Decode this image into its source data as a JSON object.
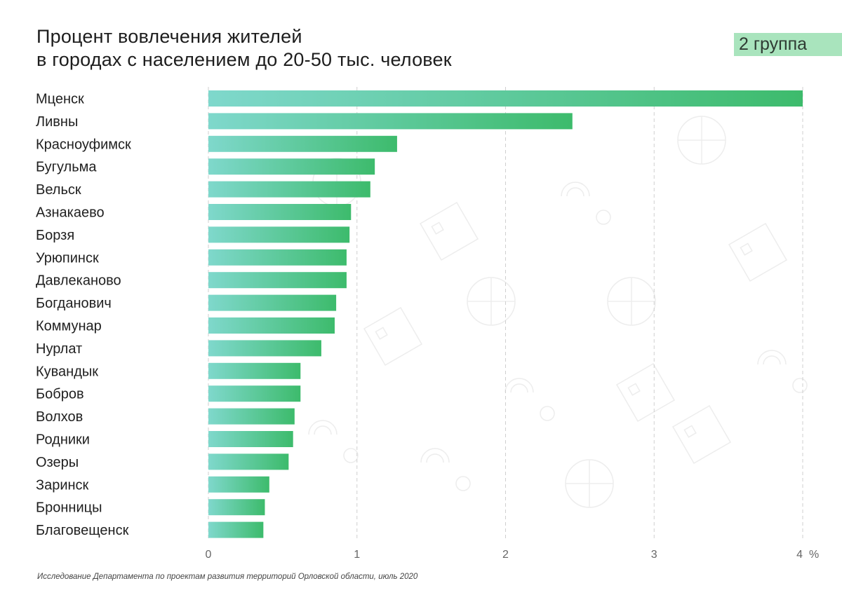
{
  "title_line1": "Процент вовлечения жителей",
  "title_line2": "в городах с населением до 20-50 тыс. человек",
  "badge": "2 группа",
  "source": "Исследование Департамента по проектам развития территорий Орловской области, июль 2020",
  "colors": {
    "bar_start": "#7fd8cc",
    "bar_end": "#3dbb6c",
    "badge_bg": "#a9e4bd",
    "grid": "#cfcfcf"
  },
  "chart_data": {
    "type": "bar",
    "orientation": "horizontal",
    "categories": [
      "Мценск",
      "Ливны",
      "Красноуфимск",
      "Бугульма",
      "Вельск",
      "Азнакаево",
      "Борзя",
      "Урюпинск",
      "Давлеканово",
      "Богданович",
      "Коммунар",
      "Нурлат",
      "Кувандык",
      "Бобров",
      "Волхов",
      "Родники",
      "Озеры",
      "Заринск",
      "Бронницы",
      "Благовещенск"
    ],
    "values": [
      4.0,
      2.45,
      1.27,
      1.12,
      1.09,
      0.96,
      0.95,
      0.93,
      0.93,
      0.86,
      0.85,
      0.76,
      0.62,
      0.62,
      0.58,
      0.57,
      0.54,
      0.41,
      0.38,
      0.37
    ],
    "xlim": [
      0,
      4
    ],
    "xticks": [
      "0",
      "1",
      "2",
      "3",
      "4"
    ],
    "xunit": "%",
    "grid": true
  }
}
